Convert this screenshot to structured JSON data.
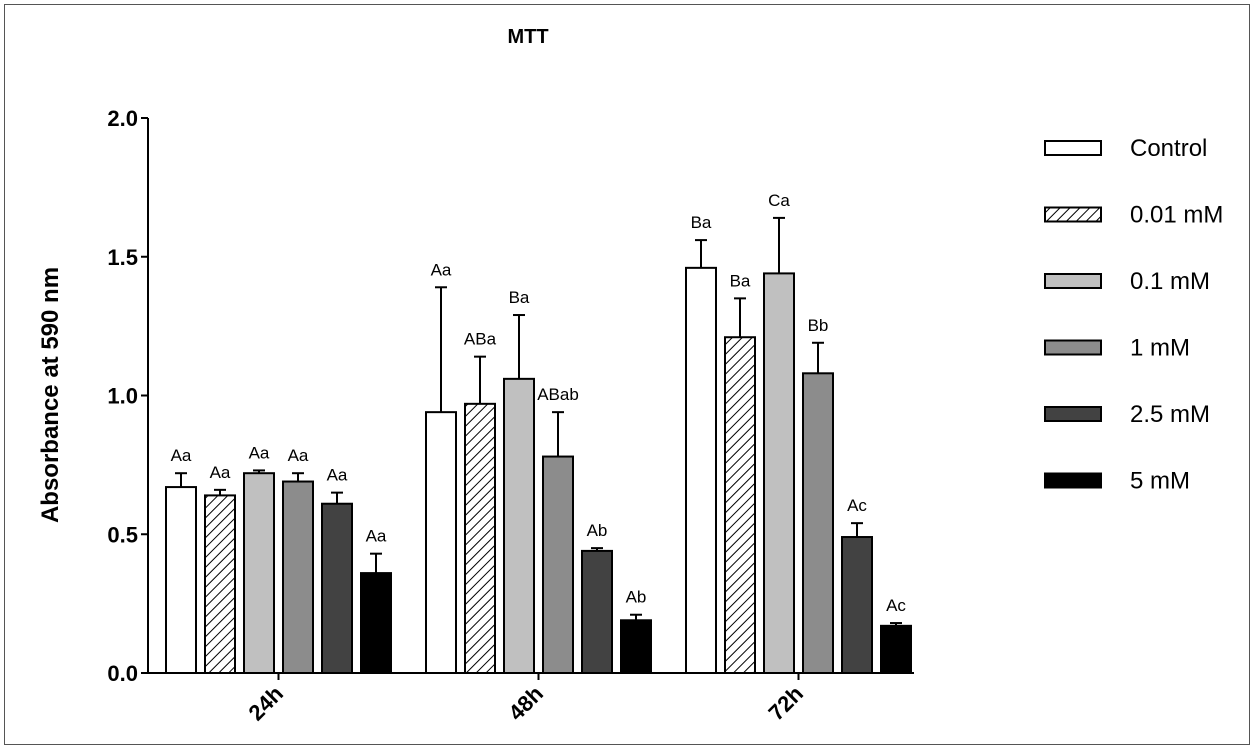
{
  "chart_data": {
    "type": "bar",
    "title": "MTT",
    "xlabel": "",
    "ylabel": "Absorbance at 590 nm",
    "ylim": [
      0,
      2.0
    ],
    "yticks": [
      "0.0",
      "0.5",
      "1.0",
      "1.5",
      "2.0"
    ],
    "categories": [
      "24h",
      "48h",
      "72h"
    ],
    "grid": false,
    "legend_position": "right",
    "series": [
      {
        "name": "Control",
        "fill": "#ffffff",
        "pattern": "none",
        "values": [
          0.67,
          0.94,
          1.46
        ],
        "errors": [
          0.05,
          0.45,
          0.1
        ],
        "labels": [
          "Aa",
          "Aa",
          "Ba"
        ]
      },
      {
        "name": "0.01 mM",
        "fill": "#ffffff",
        "pattern": "hatch",
        "values": [
          0.64,
          0.97,
          1.21
        ],
        "errors": [
          0.02,
          0.17,
          0.14
        ],
        "labels": [
          "Aa",
          "ABa",
          "Ba"
        ]
      },
      {
        "name": "0.1 mM",
        "fill": "#c0c0c0",
        "pattern": "none",
        "values": [
          0.72,
          1.06,
          1.44
        ],
        "errors": [
          0.01,
          0.23,
          0.2
        ],
        "labels": [
          "Aa",
          "Ba",
          "Ca"
        ]
      },
      {
        "name": "1 mM",
        "fill": "#8c8c8c",
        "pattern": "none",
        "values": [
          0.69,
          0.78,
          1.08
        ],
        "errors": [
          0.03,
          0.16,
          0.11
        ],
        "labels": [
          "Aa",
          "ABab",
          "Bb"
        ]
      },
      {
        "name": "2.5 mM",
        "fill": "#424242",
        "pattern": "none",
        "values": [
          0.61,
          0.44,
          0.49
        ],
        "errors": [
          0.04,
          0.01,
          0.05
        ],
        "labels": [
          "Aa",
          "Ab",
          "Ac"
        ]
      },
      {
        "name": "5 mM",
        "fill": "#000000",
        "pattern": "none",
        "values": [
          0.36,
          0.19,
          0.17
        ],
        "errors": [
          0.07,
          0.02,
          0.01
        ],
        "labels": [
          "Aa",
          "Ab",
          "Ac"
        ]
      }
    ]
  }
}
